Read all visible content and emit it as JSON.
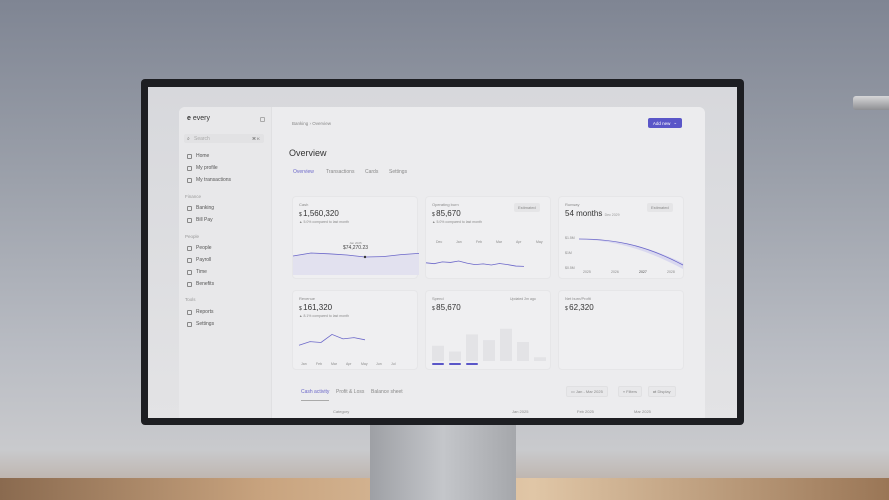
{
  "colors": {
    "accent": "#5a56c8",
    "line": "#6b67c9"
  },
  "sidebar": {
    "logo": "every",
    "search_placeholder": "Search",
    "search_shortcut": "⌘ K",
    "items": [
      {
        "label": "Home",
        "icon": "home-icon"
      },
      {
        "label": "My profile",
        "icon": "profile-icon"
      },
      {
        "label": "My transactions",
        "icon": "transactions-icon"
      }
    ],
    "finance_label": "Finance",
    "finance": [
      {
        "label": "Banking",
        "icon": "bank-icon"
      },
      {
        "label": "Bill Pay",
        "icon": "bill-icon"
      }
    ],
    "people_label": "People",
    "people": [
      {
        "label": "People",
        "icon": "people-icon"
      },
      {
        "label": "Payroll",
        "icon": "payroll-icon"
      },
      {
        "label": "Time",
        "icon": "clock-icon"
      },
      {
        "label": "Benefits",
        "icon": "benefits-icon"
      }
    ],
    "tools_label": "Tools",
    "tools": [
      {
        "label": "Reports",
        "icon": "reports-icon"
      },
      {
        "label": "Settings",
        "icon": "gear-icon"
      }
    ]
  },
  "header": {
    "breadcrumb": [
      "Banking",
      "Overview"
    ],
    "add_new": "Add new",
    "title": "Overview",
    "tabs": [
      "Overview",
      "Transactions",
      "Cards",
      "Settings"
    ],
    "active_tab": "Overview"
  },
  "cards": {
    "cash": {
      "label": "Cash",
      "value": "1,560,320",
      "change": "5.0% compared to last month",
      "tooltip_date": "Jan 2025",
      "tooltip_value": "$74,270.23",
      "series": [
        55,
        70,
        66,
        60,
        50,
        52,
        62,
        68
      ]
    },
    "burn": {
      "label": "Operating burn",
      "value": "85,670",
      "badge": "Estimated",
      "change": "5.0% compared to last month",
      "months": [
        "Dec",
        "Jan",
        "Feb",
        "Mar",
        "Apr",
        "May"
      ],
      "series": [
        40,
        35,
        45,
        42,
        50,
        38,
        30,
        34,
        28,
        36,
        30,
        22,
        20
      ]
    },
    "runway": {
      "label": "Runway",
      "value": "54 months",
      "sub": "Dec 2029",
      "badge": "Estimated",
      "yticks": [
        "$1.5M",
        "$1M",
        "$0.5M"
      ],
      "xticks": [
        "2025",
        "2026",
        "2027",
        "2028"
      ]
    },
    "revenue": {
      "label": "Revenue",
      "value": "161,320",
      "change": "8.1% compared to last month",
      "months": [
        "Jan",
        "Feb",
        "Mar",
        "Apr",
        "May",
        "Jun",
        "Jul"
      ],
      "series": [
        10,
        30,
        25,
        70,
        45,
        52,
        40
      ]
    },
    "spend": {
      "label": "Spend",
      "value": "85,670",
      "updated": "Updated 2m ago",
      "bars": [
        40,
        25,
        70,
        55,
        85,
        50,
        10
      ]
    },
    "net": {
      "label": "Net burn/Profit",
      "value": "62,320"
    }
  },
  "activity": {
    "tabs": [
      "Cash activity",
      "Profit & Loss",
      "Balance sheet"
    ],
    "range": "Jan - Mar 2025",
    "filters": "Filters",
    "display": "Display",
    "columns": [
      "Category",
      "Jan 2025",
      "Feb 2025",
      "Mar 2025"
    ]
  }
}
